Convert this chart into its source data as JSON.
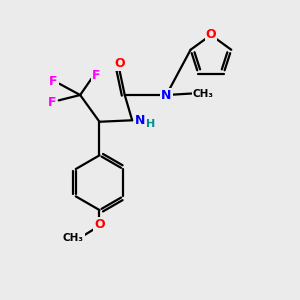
{
  "background_color": "#ebebeb",
  "line_color": "#000000",
  "bond_width": 1.6,
  "figsize": [
    3.0,
    3.0
  ],
  "dpi": 100,
  "atom_colors": {
    "O": "#ff0000",
    "N": "#0000ff",
    "F": "#ff00ff",
    "C": "#000000",
    "H": "#009090"
  }
}
